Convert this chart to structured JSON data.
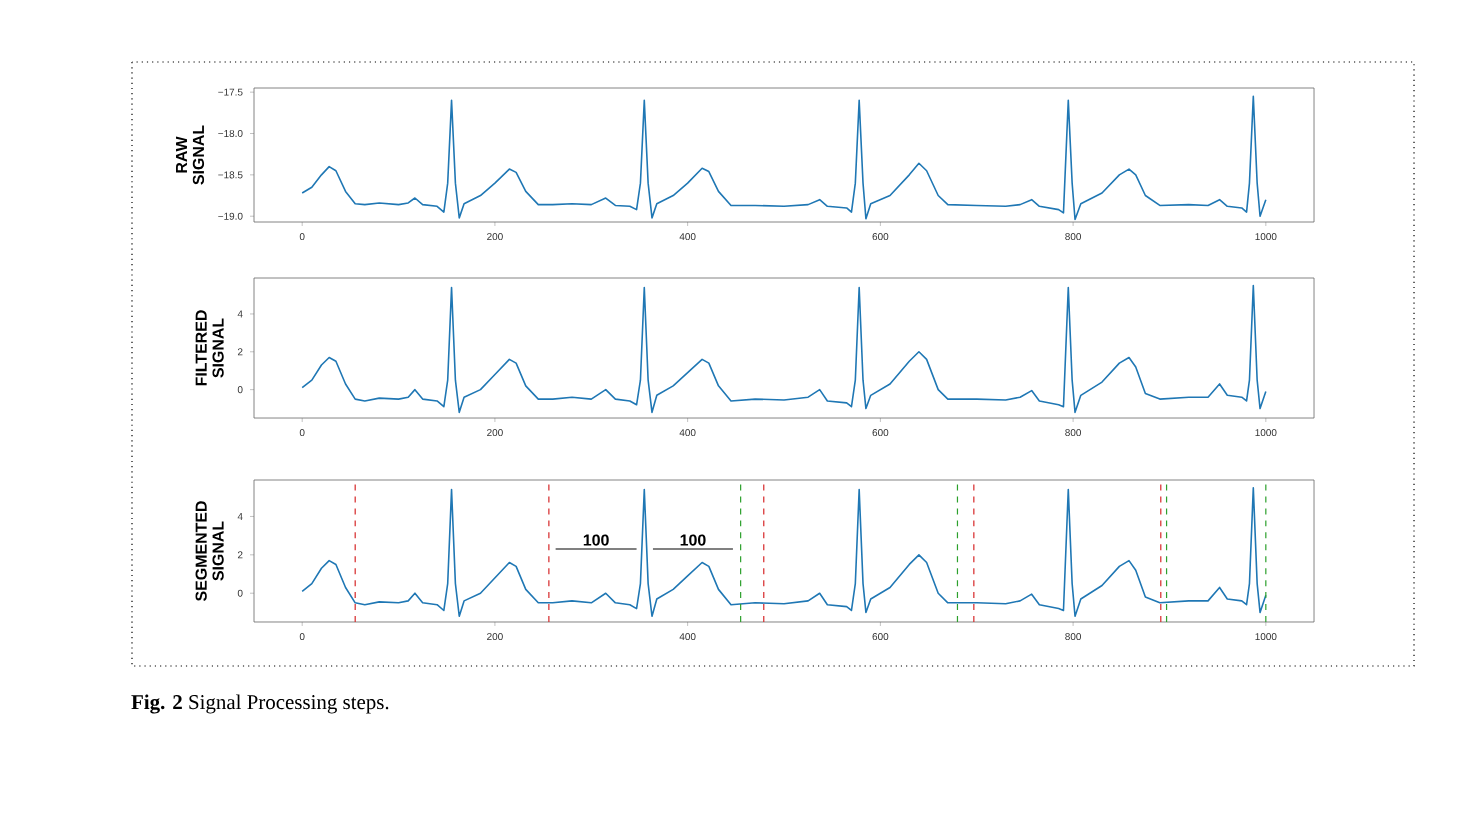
{
  "chart_data": [
    {
      "type": "line",
      "ylabel": "RAW SIGNAL",
      "xlim": [
        -50,
        1050
      ],
      "ylim": [
        -19.07,
        -17.45
      ],
      "xticks": [
        0,
        200,
        400,
        600,
        800,
        1000
      ],
      "yticks": [
        {
          "value": -19.0,
          "label": "−19.0"
        },
        {
          "value": -18.5,
          "label": "−18.5"
        },
        {
          "value": -18.0,
          "label": "−18.0"
        },
        {
          "value": -17.5,
          "label": "−17.5"
        }
      ],
      "grid": false,
      "line_style": "solid",
      "x": [
        0,
        10,
        20,
        28,
        35,
        45,
        55,
        65,
        80,
        100,
        110,
        117,
        125,
        140,
        147,
        151,
        155,
        159,
        163,
        168,
        185,
        200,
        215,
        222,
        232,
        245,
        260,
        280,
        300,
        315,
        325,
        340,
        347,
        351,
        355,
        359,
        363,
        368,
        385,
        400,
        415,
        422,
        432,
        445,
        470,
        500,
        525,
        537,
        545,
        565,
        570,
        574,
        578,
        582,
        585,
        590,
        610,
        630,
        640,
        648,
        660,
        670,
        700,
        730,
        745,
        757,
        765,
        785,
        790,
        795,
        799,
        802,
        808,
        830,
        848,
        858,
        865,
        875,
        890,
        920,
        940,
        952,
        960,
        975,
        980,
        983,
        987,
        991,
        994,
        1000
      ],
      "series": [
        {
          "color": "#1f77b4",
          "values": [
            -18.72,
            -18.65,
            -18.5,
            -18.4,
            -18.45,
            -18.7,
            -18.85,
            -18.86,
            -18.84,
            -18.86,
            -18.84,
            -18.78,
            -18.86,
            -18.88,
            -18.95,
            -18.6,
            -17.6,
            -18.6,
            -19.02,
            -18.85,
            -18.75,
            -18.6,
            -18.43,
            -18.47,
            -18.7,
            -18.86,
            -18.86,
            -18.85,
            -18.86,
            -18.78,
            -18.87,
            -18.88,
            -18.92,
            -18.6,
            -17.6,
            -18.6,
            -19.02,
            -18.85,
            -18.75,
            -18.6,
            -18.42,
            -18.46,
            -18.7,
            -18.87,
            -18.87,
            -18.88,
            -18.86,
            -18.8,
            -18.88,
            -18.9,
            -18.95,
            -18.6,
            -17.6,
            -18.6,
            -19.03,
            -18.85,
            -18.75,
            -18.5,
            -18.36,
            -18.45,
            -18.75,
            -18.86,
            -18.87,
            -18.88,
            -18.86,
            -18.8,
            -18.88,
            -18.92,
            -18.96,
            -17.6,
            -18.6,
            -19.04,
            -18.85,
            -18.72,
            -18.5,
            -18.43,
            -18.5,
            -18.75,
            -18.87,
            -18.86,
            -18.87,
            -18.8,
            -18.88,
            -18.9,
            -18.95,
            -18.6,
            -17.55,
            -18.6,
            -19.0,
            -18.8
          ]
        }
      ]
    },
    {
      "type": "line",
      "ylabel": "FILTERED SIGNAL",
      "xlim": [
        -50,
        1050
      ],
      "ylim": [
        -1.5,
        5.9
      ],
      "xticks": [
        0,
        200,
        400,
        600,
        800,
        1000
      ],
      "yticks": [
        0,
        2,
        4
      ],
      "grid": false,
      "line_style": "solid",
      "x": [
        0,
        10,
        20,
        28,
        35,
        45,
        55,
        65,
        80,
        100,
        110,
        117,
        125,
        140,
        147,
        151,
        155,
        159,
        163,
        168,
        185,
        200,
        215,
        222,
        232,
        245,
        260,
        280,
        300,
        315,
        325,
        340,
        347,
        351,
        355,
        359,
        363,
        368,
        385,
        400,
        415,
        422,
        432,
        445,
        470,
        500,
        525,
        537,
        545,
        565,
        570,
        574,
        578,
        582,
        585,
        590,
        610,
        630,
        640,
        648,
        660,
        670,
        700,
        730,
        745,
        757,
        765,
        785,
        790,
        795,
        799,
        802,
        808,
        830,
        848,
        858,
        865,
        875,
        890,
        920,
        940,
        952,
        960,
        975,
        980,
        983,
        987,
        991,
        994,
        1000
      ],
      "series": [
        {
          "color": "#1f77b4",
          "values": [
            0.1,
            0.5,
            1.3,
            1.7,
            1.5,
            0.3,
            -0.5,
            -0.6,
            -0.45,
            -0.5,
            -0.4,
            0.0,
            -0.5,
            -0.6,
            -0.9,
            0.5,
            5.4,
            0.5,
            -1.2,
            -0.4,
            0.0,
            0.8,
            1.6,
            1.4,
            0.2,
            -0.5,
            -0.5,
            -0.4,
            -0.5,
            0.0,
            -0.5,
            -0.6,
            -0.8,
            0.5,
            5.4,
            0.5,
            -1.2,
            -0.3,
            0.2,
            0.9,
            1.6,
            1.4,
            0.2,
            -0.6,
            -0.5,
            -0.55,
            -0.4,
            0.0,
            -0.6,
            -0.7,
            -0.9,
            0.5,
            5.4,
            0.5,
            -1.0,
            -0.3,
            0.3,
            1.5,
            2.0,
            1.6,
            0.0,
            -0.5,
            -0.5,
            -0.55,
            -0.4,
            -0.05,
            -0.6,
            -0.8,
            -0.9,
            5.4,
            0.5,
            -1.2,
            -0.3,
            0.4,
            1.4,
            1.7,
            1.2,
            -0.2,
            -0.5,
            -0.4,
            -0.4,
            0.3,
            -0.3,
            -0.4,
            -0.6,
            0.5,
            5.5,
            0.5,
            -1.0,
            -0.1
          ]
        }
      ]
    },
    {
      "type": "line",
      "ylabel": "SEGMENTED SIGNAL",
      "xlim": [
        -50,
        1050
      ],
      "ylim": [
        -1.5,
        5.9
      ],
      "xticks": [
        0,
        200,
        400,
        600,
        800,
        1000
      ],
      "yticks": [
        0,
        2,
        4
      ],
      "grid": false,
      "line_style": "solid",
      "x": [
        0,
        10,
        20,
        28,
        35,
        45,
        55,
        65,
        80,
        100,
        110,
        117,
        125,
        140,
        147,
        151,
        155,
        159,
        163,
        168,
        185,
        200,
        215,
        222,
        232,
        245,
        260,
        280,
        300,
        315,
        325,
        340,
        347,
        351,
        355,
        359,
        363,
        368,
        385,
        400,
        415,
        422,
        432,
        445,
        470,
        500,
        525,
        537,
        545,
        565,
        570,
        574,
        578,
        582,
        585,
        590,
        610,
        630,
        640,
        648,
        660,
        670,
        700,
        730,
        745,
        757,
        765,
        785,
        790,
        795,
        799,
        802,
        808,
        830,
        848,
        858,
        865,
        875,
        890,
        920,
        940,
        952,
        960,
        975,
        980,
        983,
        987,
        991,
        994,
        1000
      ],
      "series": [
        {
          "color": "#1f77b4",
          "values": [
            0.1,
            0.5,
            1.3,
            1.7,
            1.5,
            0.3,
            -0.5,
            -0.6,
            -0.45,
            -0.5,
            -0.4,
            0.0,
            -0.5,
            -0.6,
            -0.9,
            0.5,
            5.4,
            0.5,
            -1.2,
            -0.4,
            0.0,
            0.8,
            1.6,
            1.4,
            0.2,
            -0.5,
            -0.5,
            -0.4,
            -0.5,
            0.0,
            -0.5,
            -0.6,
            -0.8,
            0.5,
            5.4,
            0.5,
            -1.2,
            -0.3,
            0.2,
            0.9,
            1.6,
            1.4,
            0.2,
            -0.6,
            -0.5,
            -0.55,
            -0.4,
            0.0,
            -0.6,
            -0.7,
            -0.9,
            0.5,
            5.4,
            0.5,
            -1.0,
            -0.3,
            0.3,
            1.5,
            2.0,
            1.6,
            0.0,
            -0.5,
            -0.5,
            -0.55,
            -0.4,
            -0.05,
            -0.6,
            -0.8,
            -0.9,
            5.4,
            0.5,
            -1.2,
            -0.3,
            0.4,
            1.4,
            1.7,
            1.2,
            -0.2,
            -0.5,
            -0.4,
            -0.4,
            0.3,
            -0.3,
            -0.4,
            -0.6,
            0.5,
            5.5,
            0.5,
            -1.0,
            -0.1
          ]
        },
        {
          "color": "#808080",
          "x": [
            263,
            347
          ],
          "values": [
            2.3,
            2.3
          ]
        },
        {
          "color": "#808080",
          "x": [
            364,
            447
          ],
          "values": [
            2.3,
            2.3
          ]
        }
      ],
      "ref_lines": [
        {
          "axis": "x",
          "value": 55,
          "color": "#d62728",
          "line_style": "dashed"
        },
        {
          "axis": "x",
          "value": 256,
          "color": "#d62728",
          "line_style": "dashed"
        },
        {
          "axis": "x",
          "value": 455,
          "color": "#2ca02c",
          "line_style": "dashed"
        },
        {
          "axis": "x",
          "value": 479,
          "color": "#d62728",
          "line_style": "dashed"
        },
        {
          "axis": "x",
          "value": 680,
          "color": "#2ca02c",
          "line_style": "dashed"
        },
        {
          "axis": "x",
          "value": 697,
          "color": "#d62728",
          "line_style": "dashed"
        },
        {
          "axis": "x",
          "value": 891,
          "color": "#d62728",
          "line_style": "dashed"
        },
        {
          "axis": "x",
          "value": 897,
          "color": "#2ca02c",
          "line_style": "dashed"
        },
        {
          "axis": "x",
          "value": 1000,
          "color": "#2ca02c",
          "line_style": "dashed"
        }
      ],
      "annotations": [
        "100",
        "100",
        "**Fig. 2** Signal Processing steps."
      ]
    }
  ]
}
